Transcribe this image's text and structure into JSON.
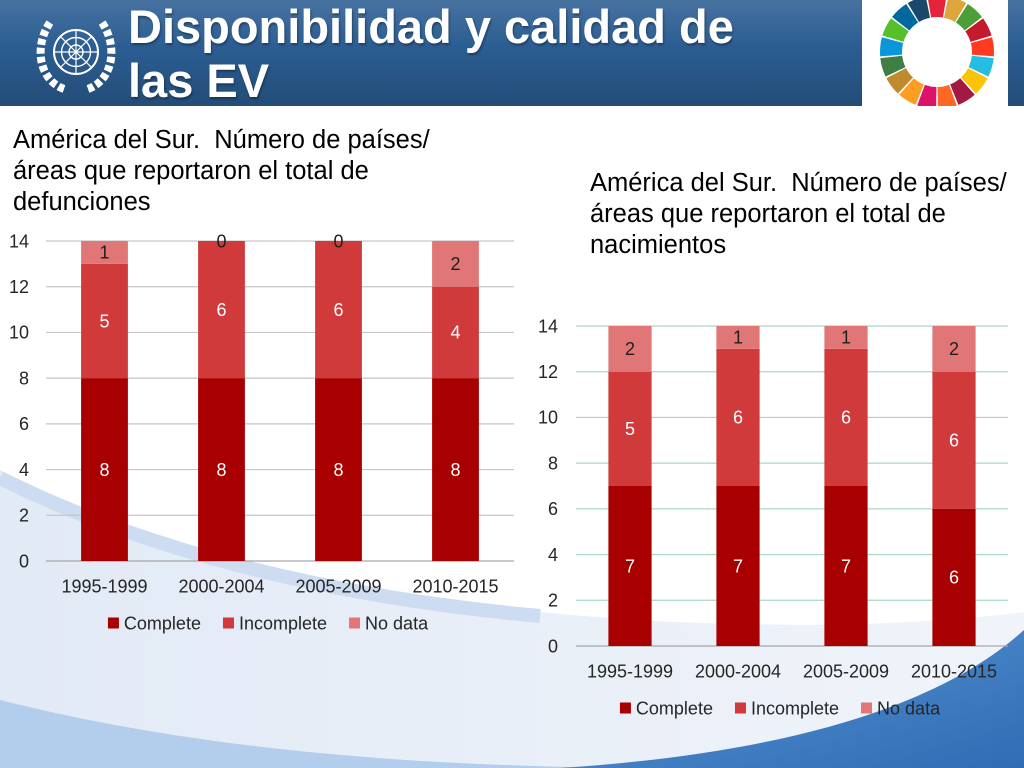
{
  "slide": {
    "title": "Disponibilidad y calidad de las EV",
    "logo_icon": "un-emblem-icon",
    "sdg_icon": "sdg-wheel-icon",
    "banner_color": "#2b5d92",
    "sdg_colors": [
      "#e5243b",
      "#dda63a",
      "#4c9f38",
      "#c5192d",
      "#ff3a21",
      "#26bde2",
      "#fcc30b",
      "#a21942",
      "#fd6925",
      "#dd1367",
      "#fd9d24",
      "#bf8b2e",
      "#3f7e44",
      "#0a97d9",
      "#56c02b",
      "#00689d",
      "#19486a"
    ]
  },
  "chart_data": [
    {
      "type": "bar",
      "stacked": true,
      "title": "América del Sur.  Número de países/áreas que reportaron el total de defunciones",
      "categories": [
        "1995-1999",
        "2000-2004",
        "2005-2009",
        "2010-2015"
      ],
      "series": [
        {
          "name": "Complete",
          "values": [
            8,
            8,
            8,
            8
          ],
          "color": "#a80000"
        },
        {
          "name": "Incomplete",
          "values": [
            5,
            6,
            6,
            4
          ],
          "color": "#d03a3a"
        },
        {
          "name": "No data",
          "values": [
            1,
            0,
            0,
            2
          ],
          "color": "#e07676"
        }
      ],
      "ylim": [
        0,
        14
      ],
      "yticks": [
        0,
        2,
        4,
        6,
        8,
        10,
        12,
        14
      ],
      "grid": true,
      "gridline_color": "#c6c6c6",
      "legend": "bottom",
      "data_labels": true
    },
    {
      "type": "bar",
      "stacked": true,
      "title": "América del Sur.  Número de países/áreas que reportaron el total de nacimientos",
      "categories": [
        "1995-1999",
        "2000-2004",
        "2005-2009",
        "2010-2015"
      ],
      "series": [
        {
          "name": "Complete",
          "values": [
            7,
            7,
            7,
            6
          ],
          "color": "#a80000"
        },
        {
          "name": "Incomplete",
          "values": [
            5,
            6,
            6,
            6
          ],
          "color": "#d03a3a"
        },
        {
          "name": "No data",
          "values": [
            2,
            1,
            1,
            2
          ],
          "color": "#e07676"
        }
      ],
      "ylim": [
        0,
        14
      ],
      "yticks": [
        0,
        2,
        4,
        6,
        8,
        10,
        12,
        14
      ],
      "grid": true,
      "gridline_color": "#a9d7c3",
      "legend": "bottom",
      "data_labels": true
    }
  ]
}
